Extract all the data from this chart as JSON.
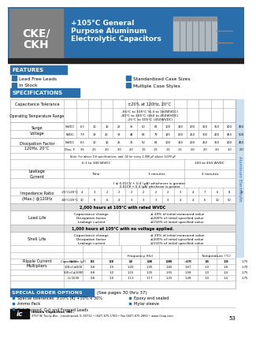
{
  "bg_color": "#ffffff",
  "blue": "#2a6eac",
  "gray": "#888888",
  "light_gray": "#eeeeee",
  "header_model_bg": "#808080",
  "surge_wvdc": [
    "6.3",
    "10",
    "16",
    "25",
    "35",
    "50",
    "63",
    "100",
    "160",
    "200",
    "250",
    "350",
    "400",
    "450"
  ],
  "surge_8vdc": [
    "7.9",
    "13",
    "20",
    "32",
    "44",
    "63",
    "79",
    "125",
    "200",
    "250",
    "300",
    "400",
    "450",
    "500"
  ],
  "df_vals": [
    ".35",
    ".25",
    ".20",
    ".20",
    ".20",
    ".15",
    ".15",
    ".15",
    ".15",
    ".20",
    ".20",
    ".20",
    ".20",
    ".20"
  ],
  "imp_vals1": [
    "4",
    "3",
    "2",
    "2",
    "2",
    "2",
    "2",
    "2",
    "3",
    "4",
    "7",
    "6",
    "8",
    "10"
  ],
  "imp_vals2": [
    "10",
    "8",
    "6",
    "4",
    "3",
    "3",
    "3",
    "3",
    "4",
    "4",
    "6",
    "10",
    "50",
    "-"
  ],
  "rip_rows": [
    [
      "C≤10",
      "0.6",
      "1.0",
      "1.3",
      "1.45",
      "1.65",
      "1.7",
      "1.0",
      "1.4",
      "1.75"
    ],
    [
      "100<C≤500",
      "0.8",
      "1.0",
      "1.20",
      "1.35",
      "1.65",
      "1.67",
      "1.0",
      "1.8",
      "1.70"
    ],
    [
      "500<C≤1000",
      "0.8",
      "1.0",
      "1.15",
      "1.25",
      "1.55",
      "1.58",
      "1.0",
      "1.4",
      "1.75"
    ],
    [
      "C>1000",
      "0.8",
      "1.0",
      "1.11",
      "1.17",
      "1.25",
      "1.28",
      "1.0",
      "1.4",
      "1.75"
    ]
  ]
}
